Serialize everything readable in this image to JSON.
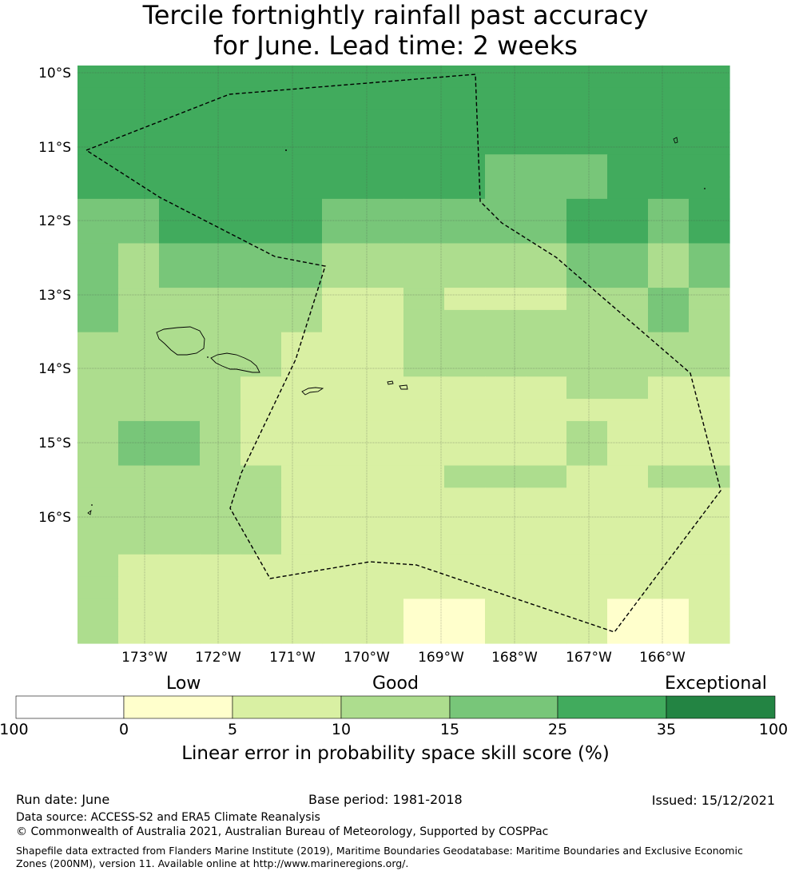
{
  "title_lines": [
    "Tercile fortnightly rainfall past accuracy",
    "for June. Lead time: 2 weeks"
  ],
  "map": {
    "lat_labels": [
      "10°S",
      "11°S",
      "12°S",
      "13°S",
      "14°S",
      "15°S",
      "16°S"
    ],
    "lon_labels": [
      "173°W",
      "172°W",
      "171°W",
      "170°W",
      "169°W",
      "168°W",
      "167°W",
      "166°W"
    ],
    "grid_rows": [
      "5555555555555555",
      "5555555555555555",
      "5555555555555555",
      "5555555555555555",
      "5555555555444555",
      "5555555555444555",
      "4455554444445545",
      "4455554444445545",
      "4344443333334434",
      "4344443333334434",
      "4333332232223343",
      "4333332233333343",
      "3333322233333333",
      "3333322233333333",
      "3333222222223322",
      "3333222222222222",
      "3443222222223222",
      "3443222222223222",
      "3333322223332233",
      "3333322222222222",
      "3333322222222222",
      "3333322222222222",
      "3222222222222222",
      "3222222222222222",
      "3222222211222112",
      "3222222211222112"
    ]
  },
  "colorbar": {
    "category_labels": [
      "Low",
      "Good",
      "Exceptional"
    ],
    "ticks": [
      "-100",
      "0",
      "5",
      "10",
      "15",
      "25",
      "35",
      "100"
    ],
    "colors": [
      "#ffffff",
      "#ffffcc",
      "#d9f0a3",
      "#addd8e",
      "#78c679",
      "#41ab5d",
      "#238443"
    ],
    "title": "Linear error in probability space skill score (%)"
  },
  "footer": {
    "run_date": "Run date: June",
    "base_period": "Base period: 1981-2018",
    "issued": "Issued: 15/12/2021",
    "data_source": "Data source: ACCESS-S2 and ERA5 Climate Reanalysis",
    "copyright": "© Commonwealth of Australia 2021, Australian Bureau of Meteorology, Supported by COSPPac",
    "shapefile": "Shapefile data extracted from Flanders Marine Institute (2019), Maritime Boundaries Geodatabase: Maritime Boundaries and Exclusive Economic Zones (200NM), version 11. Available online at http://www.marineregions.org/."
  }
}
